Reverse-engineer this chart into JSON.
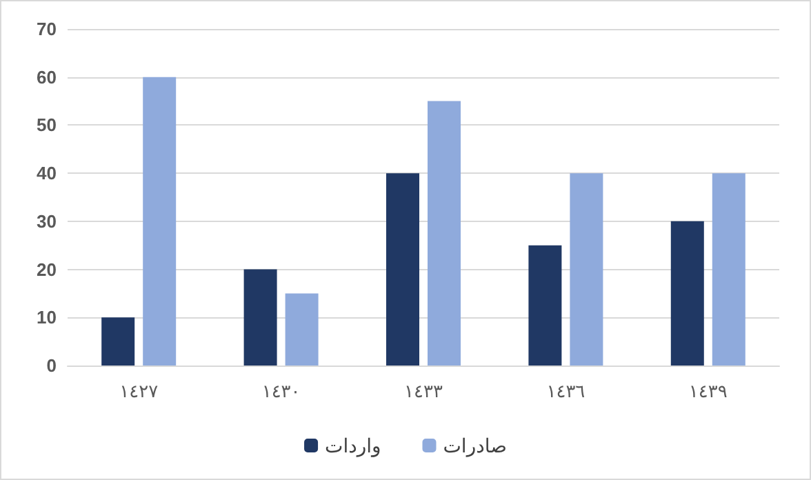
{
  "chart_data": {
    "type": "bar",
    "categories": [
      "١٤٢٧",
      "١٤٣٠",
      "١٤٣٣",
      "١٤٣٦",
      "١٤٣٩"
    ],
    "series": [
      {
        "name": "واردات",
        "color": "#203864",
        "values": [
          10,
          20,
          40,
          25,
          30
        ]
      },
      {
        "name": "صادرات",
        "color": "#8faadc",
        "values": [
          60,
          15,
          55,
          40,
          40
        ]
      }
    ],
    "ylim": [
      0,
      70
    ],
    "yticks": [
      0,
      10,
      20,
      30,
      40,
      50,
      60,
      70
    ],
    "grid": "y",
    "legend": "bottom"
  }
}
